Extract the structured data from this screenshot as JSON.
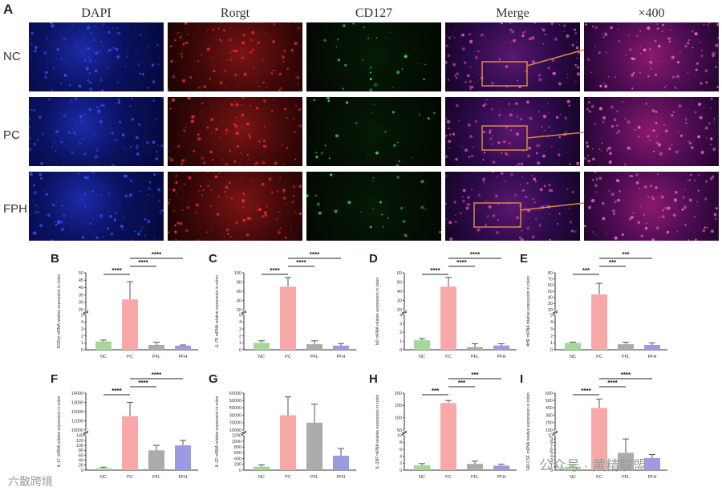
{
  "panelA": {
    "label": "A",
    "columns": [
      "DAPI",
      "Rorgt",
      "CD127",
      "Merge",
      "×400"
    ],
    "rows": [
      "NC",
      "PC",
      "FPH"
    ]
  },
  "watermarks": {
    "top_right": "公众号 · 黄精联盟",
    "bottom_left": "六散跨境"
  },
  "chart_data": [
    {
      "panel": "B",
      "type": "bar",
      "categories": [
        "NC",
        "PC",
        "PFL",
        "PFH"
      ],
      "values": [
        1.2,
        32,
        0.7,
        0.6
      ],
      "errors": [
        0.2,
        12,
        0.4,
        0.1
      ],
      "ylabel": "RORγt mRNA relative expression in colon",
      "yticks_lower": [
        "0",
        "1",
        "2",
        "3",
        "4",
        "5"
      ],
      "yticks_upper": [
        "25",
        "30",
        "35",
        "40",
        "45",
        "50"
      ],
      "colors": [
        "#a5d69a",
        "#f7a9a9",
        "#ababab",
        "#9d9be0"
      ],
      "significance": [
        "****",
        "****",
        "****"
      ]
    },
    {
      "panel": "C",
      "type": "bar",
      "categories": [
        "NC",
        "PC",
        "PFL",
        "PFH"
      ],
      "values": [
        1.0,
        70,
        0.8,
        0.6
      ],
      "errors": [
        0.3,
        20,
        0.5,
        0.3
      ],
      "ylabel": "IL-7R mRNA relative expression in colon",
      "yticks_lower": [
        "0",
        "1",
        "2",
        "3",
        "4",
        "5"
      ],
      "yticks_upper": [
        "20",
        "40",
        "60",
        "80",
        "100"
      ],
      "colors": [
        "#a5d69a",
        "#f7a9a9",
        "#ababab",
        "#9d9be0"
      ],
      "significance": [
        "****",
        "****",
        "****"
      ]
    },
    {
      "panel": "D",
      "type": "bar",
      "categories": [
        "NC",
        "PC",
        "PFL",
        "PFH"
      ],
      "values": [
        1.1,
        45,
        0.3,
        0.5
      ],
      "errors": [
        0.2,
        10,
        0.4,
        0.2
      ],
      "ylabel": "Id2 mRNA relative expression in colon",
      "yticks_lower": [
        "0",
        "1",
        "2",
        "3",
        "4"
      ],
      "yticks_upper": [
        "20",
        "30",
        "40",
        "50",
        "60"
      ],
      "colors": [
        "#a5d69a",
        "#f7a9a9",
        "#ababab",
        "#9d9be0"
      ],
      "significance": [
        "****",
        "****",
        "****"
      ]
    },
    {
      "panel": "E",
      "type": "bar",
      "categories": [
        "NC",
        "PC",
        "PFL",
        "PFH"
      ],
      "values": [
        1.0,
        45,
        0.8,
        0.7
      ],
      "errors": [
        0.1,
        18,
        0.3,
        0.3
      ],
      "ylabel": "AHR mRNA relative expression in colon",
      "yticks_lower": [
        "0",
        "1",
        "2",
        "3",
        "4",
        "5"
      ],
      "yticks_upper": [
        "20",
        "30",
        "40",
        "50",
        "60",
        "70",
        "80"
      ],
      "colors": [
        "#a5d69a",
        "#f7a9a9",
        "#ababab",
        "#9d9be0"
      ],
      "significance": [
        "***",
        "***",
        "***"
      ]
    },
    {
      "panel": "F",
      "type": "bar",
      "categories": [
        "NC",
        "PC",
        "PFL",
        "PFH"
      ],
      "values": [
        8,
        11500,
        80,
        100
      ],
      "errors": [
        4,
        1500,
        20,
        20
      ],
      "ylabel": "IL-17 mRNA relative expression in colon",
      "yticks_lower": [
        "0",
        "20",
        "40",
        "60",
        "80",
        "100",
        "120",
        "140"
      ],
      "yticks_upper": [
        "10000",
        "11000",
        "12000",
        "13000",
        "14000"
      ],
      "colors": [
        "#a5d69a",
        "#f7a9a9",
        "#ababab",
        "#9d9be0"
      ],
      "significance": [
        "****",
        "****",
        "****"
      ]
    },
    {
      "panel": "G",
      "type": "bar",
      "categories": [
        "NC",
        "PC",
        "PFL",
        "PFH"
      ],
      "values": [
        120,
        30000,
        20000,
        500
      ],
      "errors": [
        60,
        25000,
        25000,
        250
      ],
      "ylabel": "IL-22 mRNA relative expression in colon",
      "yticks_lower": [
        "0",
        "200",
        "400",
        "600",
        "800",
        "1000",
        "1200"
      ],
      "yticks_upper": [
        "10000",
        "20000",
        "30000",
        "40000",
        "50000",
        "60000"
      ],
      "colors": [
        "#a5d69a",
        "#f7a9a9",
        "#ababab",
        "#9d9be0"
      ],
      "significance": []
    },
    {
      "panel": "H",
      "type": "bar",
      "categories": [
        "NC",
        "PC",
        "PFL",
        "PFH"
      ],
      "values": [
        1.4,
        160,
        1.8,
        1.3
      ],
      "errors": [
        0.5,
        10,
        0.8,
        0.4
      ],
      "ylabel": "IL-23R mRNA relative expression in colon",
      "yticks_lower": [
        "0",
        "2",
        "4",
        "6",
        "8",
        "10"
      ],
      "yticks_upper": [
        "50",
        "100",
        "150",
        "200"
      ],
      "colors": [
        "#a5d69a",
        "#f7a9a9",
        "#ababab",
        "#9d9be0"
      ],
      "significance": [
        "***",
        "***",
        "***"
      ]
    },
    {
      "panel": "I",
      "type": "bar",
      "categories": [
        "NC",
        "PC",
        "PFL",
        "PFH"
      ],
      "values": [
        1,
        400,
        5,
        3.5
      ],
      "errors": [
        0.5,
        120,
        4,
        1
      ],
      "ylabel": "GM-CSF mRNA relative expression in colon",
      "yticks_lower": [
        "0",
        "1",
        "2",
        "3",
        "4",
        "5",
        "6",
        "7",
        "8",
        "9",
        "10"
      ],
      "yticks_upper": [
        "100",
        "200",
        "300",
        "400",
        "500",
        "600"
      ],
      "colors": [
        "#a5d69a",
        "#f7a9a9",
        "#ababab",
        "#9d9be0"
      ],
      "significance": [
        "****",
        "****",
        "****"
      ]
    }
  ]
}
